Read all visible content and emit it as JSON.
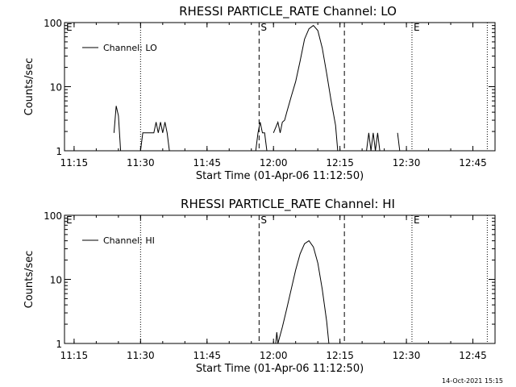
{
  "footer": {
    "timestamp": "14-Oct-2021 15:15"
  },
  "chart_data": [
    {
      "type": "line",
      "title": "RHESSI PARTICLE_RATE Channel: LO",
      "xlabel": "Start Time (01-Apr-06 11:12:50)",
      "ylabel": "Counts/sec",
      "yscale": "log",
      "xlim": [
        "11:12:50",
        "12:50:00"
      ],
      "ylim": [
        1,
        100
      ],
      "x_ticks": [
        "11:15",
        "11:30",
        "11:45",
        "12:00",
        "12:15",
        "12:30",
        "12:45"
      ],
      "y_ticks": [
        "1",
        "10",
        "100"
      ],
      "legend": {
        "position": "top-left",
        "label": "Channel: LO"
      },
      "markers": [
        {
          "time": "11:12:50",
          "label": "E",
          "style": "dotted"
        },
        {
          "time": "11:30:00",
          "label": "",
          "style": "dotted"
        },
        {
          "time": "11:56:45",
          "label": "S",
          "style": "dashed"
        },
        {
          "time": "12:16:00",
          "label": "",
          "style": "dashed"
        },
        {
          "time": "12:31:15",
          "label": "E",
          "style": "dotted"
        },
        {
          "time": "12:48:15",
          "label": "",
          "style": "dotted"
        }
      ],
      "segments": [
        [
          [
            "11:24:00",
            1.9
          ],
          [
            "11:24:30",
            5.0
          ],
          [
            "11:25:00",
            3.5
          ],
          [
            "11:25:30",
            1.0
          ]
        ],
        [
          [
            "11:30:00",
            1.0
          ],
          [
            "11:30:30",
            1.9
          ],
          [
            "11:33:00",
            1.9
          ],
          [
            "11:33:30",
            2.8
          ],
          [
            "11:34:00",
            1.9
          ],
          [
            "11:34:30",
            2.8
          ],
          [
            "11:35:00",
            1.9
          ],
          [
            "11:35:30",
            2.8
          ],
          [
            "11:36:00",
            1.9
          ],
          [
            "11:36:30",
            1.0
          ]
        ],
        [
          [
            "11:56:00",
            1.0
          ],
          [
            "11:56:30",
            1.9
          ],
          [
            "11:57:00",
            2.8
          ],
          [
            "11:57:30",
            1.9
          ],
          [
            "11:58:00",
            1.9
          ],
          [
            "11:58:30",
            1.0
          ]
        ],
        [
          [
            "12:00:00",
            1.9
          ],
          [
            "12:01:00",
            2.8
          ],
          [
            "12:01:30",
            1.9
          ],
          [
            "12:02:00",
            2.8
          ],
          [
            "12:02:30",
            3.0
          ],
          [
            "12:03:00",
            4.0
          ],
          [
            "12:04:00",
            7.0
          ],
          [
            "12:05:00",
            12
          ],
          [
            "12:06:00",
            25
          ],
          [
            "12:07:00",
            55
          ],
          [
            "12:08:00",
            80
          ],
          [
            "12:09:00",
            90
          ],
          [
            "12:10:00",
            75
          ],
          [
            "12:11:00",
            40
          ],
          [
            "12:12:00",
            16
          ],
          [
            "12:13:00",
            6
          ],
          [
            "12:14:00",
            2.5
          ],
          [
            "12:14:30",
            1.0
          ]
        ],
        [
          [
            "12:21:00",
            1.0
          ],
          [
            "12:21:30",
            1.9
          ],
          [
            "12:22:00",
            1.0
          ],
          [
            "12:22:30",
            1.9
          ],
          [
            "12:23:00",
            1.0
          ],
          [
            "12:23:30",
            1.9
          ],
          [
            "12:24:00",
            1.0
          ]
        ],
        [
          [
            "12:28:00",
            1.9
          ],
          [
            "12:28:30",
            1.0
          ]
        ]
      ]
    },
    {
      "type": "line",
      "title": "RHESSI PARTICLE_RATE Channel: HI",
      "xlabel": "Start Time (01-Apr-06 11:12:50)",
      "ylabel": "Counts/sec",
      "yscale": "log",
      "xlim": [
        "11:12:50",
        "12:50:00"
      ],
      "ylim": [
        1,
        100
      ],
      "x_ticks": [
        "11:15",
        "11:30",
        "11:45",
        "12:00",
        "12:15",
        "12:30",
        "12:45"
      ],
      "y_ticks": [
        "1",
        "10",
        "100"
      ],
      "legend": {
        "position": "top-left",
        "label": "Channel: HI"
      },
      "markers": [
        {
          "time": "11:12:50",
          "label": "E",
          "style": "dotted"
        },
        {
          "time": "11:30:00",
          "label": "",
          "style": "dotted"
        },
        {
          "time": "11:56:45",
          "label": "S",
          "style": "dashed"
        },
        {
          "time": "12:16:00",
          "label": "",
          "style": "dashed"
        },
        {
          "time": "12:31:15",
          "label": "E",
          "style": "dotted"
        },
        {
          "time": "12:48:15",
          "label": "",
          "style": "dotted"
        }
      ],
      "segments": [
        [
          [
            "12:00:30",
            1.0
          ],
          [
            "12:00:45",
            1.5
          ],
          [
            "12:01:00",
            1.0
          ]
        ],
        [
          [
            "12:01:00",
            1.0
          ],
          [
            "12:02:00",
            1.8
          ],
          [
            "12:03:00",
            3.5
          ],
          [
            "12:04:00",
            7
          ],
          [
            "12:05:00",
            14
          ],
          [
            "12:06:00",
            25
          ],
          [
            "12:07:00",
            36
          ],
          [
            "12:08:00",
            40
          ],
          [
            "12:09:00",
            32
          ],
          [
            "12:10:00",
            18
          ],
          [
            "12:11:00",
            7
          ],
          [
            "12:12:00",
            2.2
          ],
          [
            "12:12:30",
            1.0
          ]
        ]
      ]
    }
  ]
}
